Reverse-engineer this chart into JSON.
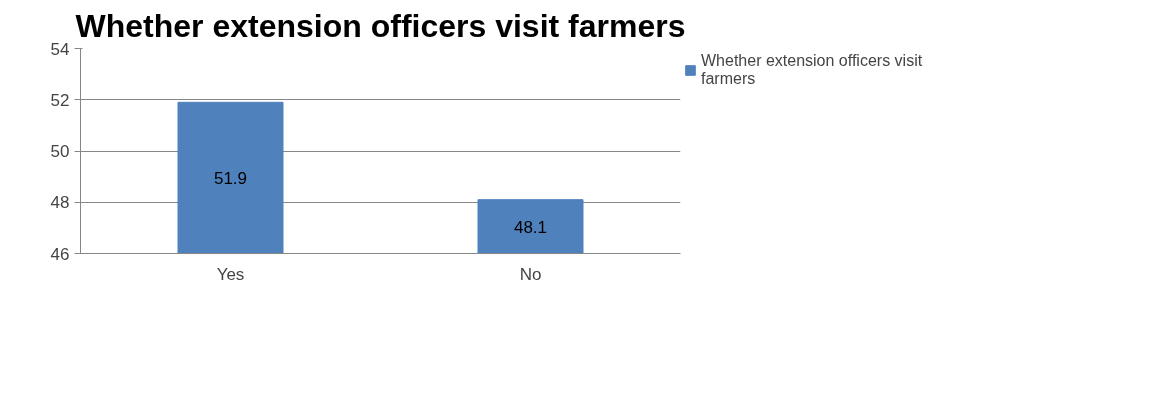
{
  "chart_data": {
    "type": "bar",
    "title": "Whether extension officers visit farmers",
    "categories": [
      "Yes",
      "No"
    ],
    "series": [
      {
        "name": "Whether extension officers visit farmers",
        "color": "#4f81bd",
        "values": [
          51.9,
          48.1
        ]
      }
    ],
    "ylim": [
      46,
      54
    ],
    "yticks": [
      46,
      48,
      50,
      52,
      54
    ],
    "grid": "y",
    "legend": "right",
    "data_labels": true
  }
}
